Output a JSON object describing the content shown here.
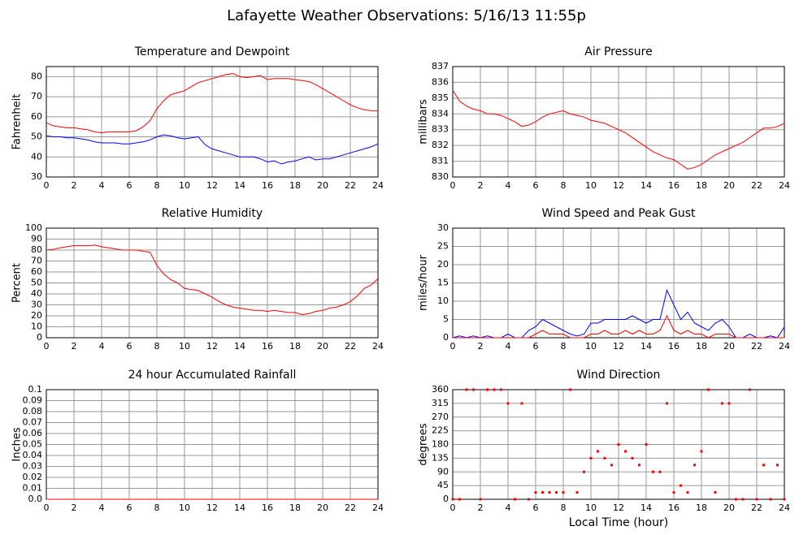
{
  "title": "Lafayette Weather Observations: 5/16/13 11:55p",
  "chart_data": [
    {
      "type": "line",
      "title": "Temperature and Dewpoint",
      "ylabel": "Fahrenheit",
      "xlim": [
        0,
        24
      ],
      "xticks": [
        0,
        2,
        4,
        6,
        8,
        10,
        12,
        14,
        16,
        18,
        20,
        22,
        24
      ],
      "ylim": [
        30,
        85
      ],
      "yticks": [
        30,
        40,
        50,
        60,
        70,
        80
      ],
      "grid": true,
      "x": [
        0,
        0.5,
        1,
        1.5,
        2,
        2.5,
        3,
        3.5,
        4,
        4.5,
        5,
        5.5,
        6,
        6.5,
        7,
        7.5,
        8,
        8.5,
        9,
        9.5,
        10,
        10.5,
        11,
        11.5,
        12,
        12.5,
        13,
        13.5,
        14,
        14.5,
        15,
        15.5,
        16,
        16.5,
        17,
        17.5,
        18,
        18.5,
        19,
        19.5,
        20,
        20.5,
        21,
        21.5,
        22,
        22.5,
        23,
        23.5,
        24
      ],
      "series": [
        {
          "color": "#ff0000",
          "values": [
            57,
            55.5,
            55,
            54.5,
            54.5,
            54,
            53.5,
            52.5,
            52,
            52.5,
            52.5,
            52.5,
            52.5,
            53,
            55,
            58,
            64,
            68,
            71,
            72,
            73,
            75,
            77,
            78,
            79,
            80,
            81,
            81.5,
            80,
            79.5,
            80,
            80.5,
            78.5,
            79,
            79,
            79,
            78.5,
            78,
            77.5,
            76,
            74,
            72,
            70,
            68,
            66,
            64.5,
            63.5,
            63,
            63
          ]
        },
        {
          "color": "#0000ff",
          "values": [
            50.5,
            50,
            50,
            49.5,
            49.5,
            49,
            48.5,
            47.5,
            47,
            47,
            47,
            46.5,
            46.5,
            47,
            47.5,
            48.5,
            50,
            51,
            50.5,
            49.5,
            49,
            49.5,
            50,
            46,
            44,
            43,
            42,
            41,
            40,
            40,
            40,
            39,
            37.5,
            38,
            36.5,
            37.5,
            38,
            39,
            40,
            38.5,
            39,
            39,
            40,
            41,
            42,
            43,
            44,
            45,
            46.5
          ]
        }
      ]
    },
    {
      "type": "line",
      "title": "Air Pressure",
      "ylabel": "millibars",
      "xlim": [
        0,
        24
      ],
      "xticks": [
        0,
        2,
        4,
        6,
        8,
        10,
        12,
        14,
        16,
        18,
        20,
        22,
        24
      ],
      "ylim": [
        830,
        837
      ],
      "yticks": [
        830,
        831,
        832,
        833,
        834,
        835,
        836,
        837
      ],
      "grid": true,
      "x": [
        0,
        0.5,
        1,
        1.5,
        2,
        2.5,
        3,
        3.5,
        4,
        4.5,
        5,
        5.5,
        6,
        6.5,
        7,
        7.5,
        8,
        8.5,
        9,
        9.5,
        10,
        10.5,
        11,
        11.5,
        12,
        12.5,
        13,
        13.5,
        14,
        14.5,
        15,
        15.5,
        16,
        16.5,
        17,
        17.5,
        18,
        18.5,
        19,
        19.5,
        20,
        20.5,
        21,
        21.5,
        22,
        22.5,
        23,
        23.5,
        24
      ],
      "series": [
        {
          "color": "#ff0000",
          "values": [
            835.5,
            834.8,
            834.5,
            834.3,
            834.2,
            834,
            834,
            833.9,
            833.7,
            833.5,
            833.2,
            833.3,
            833.5,
            833.8,
            834,
            834.1,
            834.2,
            834,
            833.9,
            833.8,
            833.6,
            833.5,
            833.4,
            833.2,
            833,
            832.8,
            832.5,
            832.2,
            831.9,
            831.6,
            831.4,
            831.2,
            831.1,
            830.8,
            830.5,
            830.6,
            830.8,
            831.1,
            831.4,
            831.6,
            831.8,
            832,
            832.2,
            832.5,
            832.8,
            833.1,
            833.1,
            833.2,
            833.4
          ]
        }
      ]
    },
    {
      "type": "line",
      "title": "Relative Humidity",
      "ylabel": "Percent",
      "xlim": [
        0,
        24
      ],
      "xticks": [
        0,
        2,
        4,
        6,
        8,
        10,
        12,
        14,
        16,
        18,
        20,
        22,
        24
      ],
      "ylim": [
        0,
        100
      ],
      "yticks": [
        0,
        10,
        20,
        30,
        40,
        50,
        60,
        70,
        80,
        90,
        100
      ],
      "grid": true,
      "x": [
        0,
        0.5,
        1,
        1.5,
        2,
        2.5,
        3,
        3.5,
        4,
        4.5,
        5,
        5.5,
        6,
        6.5,
        7,
        7.5,
        8,
        8.5,
        9,
        9.5,
        10,
        10.5,
        11,
        11.5,
        12,
        12.5,
        13,
        13.5,
        14,
        14.5,
        15,
        15.5,
        16,
        16.5,
        17,
        17.5,
        18,
        18.5,
        19,
        19.5,
        20,
        20.5,
        21,
        21.5,
        22,
        22.5,
        23,
        23.5,
        24
      ],
      "series": [
        {
          "color": "#ff0000",
          "values": [
            80,
            80.5,
            82,
            83,
            84,
            84,
            84,
            84.5,
            83,
            82,
            81,
            80,
            80,
            80,
            79,
            78,
            66,
            58,
            53,
            50,
            45,
            44,
            43,
            40,
            37,
            33,
            30,
            28,
            27,
            26,
            25,
            25,
            24,
            25,
            24,
            23,
            23,
            21,
            22,
            24,
            25,
            27,
            28,
            30,
            33,
            38,
            45,
            48,
            54
          ]
        }
      ]
    },
    {
      "type": "line",
      "title": "Wind Speed and Peak Gust",
      "ylabel": "miles/hour",
      "xlim": [
        0,
        24
      ],
      "xticks": [
        0,
        2,
        4,
        6,
        8,
        10,
        12,
        14,
        16,
        18,
        20,
        22,
        24
      ],
      "ylim": [
        0,
        30
      ],
      "yticks": [
        0,
        5,
        10,
        15,
        20,
        25,
        30
      ],
      "grid": true,
      "x": [
        0,
        0.5,
        1,
        1.5,
        2,
        2.5,
        3,
        3.5,
        4,
        4.5,
        5,
        5.5,
        6,
        6.5,
        7,
        7.5,
        8,
        8.5,
        9,
        9.5,
        10,
        10.5,
        11,
        11.5,
        12,
        12.5,
        13,
        13.5,
        14,
        14.5,
        15,
        15.5,
        16,
        16.5,
        17,
        17.5,
        18,
        18.5,
        19,
        19.5,
        20,
        20.5,
        21,
        21.5,
        22,
        22.5,
        23,
        23.5,
        24
      ],
      "series": [
        {
          "color": "#0000ff",
          "values": [
            0,
            0.5,
            0,
            0.5,
            0,
            0.5,
            0,
            0,
            1,
            0,
            0,
            2,
            3,
            5,
            4,
            3,
            2,
            1,
            0.5,
            1,
            4,
            4,
            5,
            5,
            5,
            5,
            6,
            5,
            4,
            5,
            5,
            13,
            9,
            5,
            7,
            4,
            3,
            2,
            4,
            5,
            3,
            0,
            0,
            1,
            0,
            0,
            0.5,
            0,
            3
          ]
        },
        {
          "color": "#ff0000",
          "values": [
            0,
            0,
            0,
            0,
            0,
            0,
            0,
            0,
            0,
            0,
            0,
            0,
            1,
            2,
            1,
            1,
            1,
            0,
            0,
            0,
            1,
            1,
            2,
            1,
            1,
            2,
            1,
            2,
            1,
            1,
            2,
            6,
            2,
            1,
            2,
            1,
            1,
            0,
            1,
            1,
            1,
            0,
            0,
            0,
            0,
            0,
            0,
            0,
            0
          ]
        }
      ]
    },
    {
      "type": "line",
      "title": "24 hour Accumulated Rainfall",
      "ylabel": "Inches",
      "xlim": [
        0,
        24
      ],
      "xticks": [
        0,
        2,
        4,
        6,
        8,
        10,
        12,
        14,
        16,
        18,
        20,
        22,
        24
      ],
      "ylim": [
        0,
        0.1
      ],
      "yticks": [
        {
          "value": 0,
          "label": "0.0"
        },
        0.01,
        0.02,
        0.03,
        0.04,
        0.05,
        0.06,
        0.07,
        0.08,
        0.09,
        0.1
      ],
      "grid": true,
      "x": [
        0,
        24
      ],
      "series": [
        {
          "color": "#ff0000",
          "values": [
            0,
            0
          ]
        }
      ]
    },
    {
      "type": "scatter",
      "title": "Wind Direction",
      "ylabel": "degrees",
      "xlabel": "Local Time (hour)",
      "xlim": [
        0,
        24
      ],
      "xticks": [
        0,
        2,
        4,
        6,
        8,
        10,
        12,
        14,
        16,
        18,
        20,
        22,
        24
      ],
      "ylim": [
        0,
        360
      ],
      "yticks": [
        0,
        45,
        90,
        135,
        180,
        225,
        270,
        315,
        360
      ],
      "grid": true,
      "x": [
        0,
        0.5,
        1,
        1.5,
        2,
        2.5,
        3,
        3.5,
        4,
        4.5,
        5,
        5.5,
        6,
        6.5,
        7,
        7.5,
        8,
        8.5,
        9,
        9.5,
        10,
        10.5,
        11,
        11.5,
        12,
        12.5,
        13,
        13.5,
        14,
        14.5,
        15,
        15.5,
        16,
        16.5,
        17,
        17.5,
        18,
        18.5,
        19,
        19.5,
        20,
        20.5,
        21,
        21.5,
        22,
        22.5,
        23,
        23.5,
        24
      ],
      "series": [
        {
          "color": "#ff0000",
          "values": [
            0,
            0,
            360,
            360,
            0,
            360,
            360,
            360,
            315,
            0,
            315,
            0,
            22.5,
            22.5,
            22.5,
            22.5,
            22.5,
            360,
            22.5,
            90,
            135,
            157.5,
            135,
            112.5,
            180,
            157.5,
            135,
            112.5,
            180,
            90,
            90,
            315,
            22.5,
            45,
            22.5,
            112.5,
            157.5,
            360,
            22.5,
            315,
            315,
            0,
            0,
            360,
            0,
            112.5,
            0,
            112.5,
            0
          ]
        }
      ]
    }
  ]
}
